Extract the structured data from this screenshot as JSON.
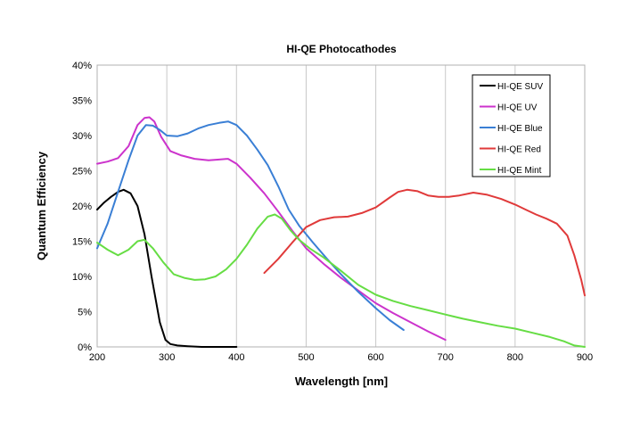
{
  "chart_data": {
    "type": "line",
    "title": "HI-QE Photocathodes",
    "xlabel": "Wavelength [nm]",
    "ylabel": "Quantum Efficiency",
    "xlim": [
      200,
      900
    ],
    "ylim": [
      0,
      0.4
    ],
    "x_ticks": [
      200,
      300,
      400,
      500,
      600,
      700,
      800,
      900
    ],
    "y_ticks": [
      0,
      0.05,
      0.1,
      0.15,
      0.2,
      0.25,
      0.3,
      0.35,
      0.4
    ],
    "x_tick_labels": [
      "200",
      "300",
      "400",
      "500",
      "600",
      "700",
      "800",
      "900"
    ],
    "y_tick_labels": [
      "0%",
      "5%",
      "10%",
      "15%",
      "20%",
      "25%",
      "30%",
      "35%",
      "40%"
    ],
    "grid": "vertical",
    "legend_position": "top-right",
    "series": [
      {
        "name": "HI-QE SUV",
        "color": "#000000",
        "x": [
          200,
          210,
          220,
          230,
          238,
          248,
          258,
          268,
          278,
          290,
          298,
          305,
          315,
          330,
          350,
          370,
          400
        ],
        "y": [
          0.195,
          0.205,
          0.213,
          0.22,
          0.223,
          0.218,
          0.2,
          0.16,
          0.1,
          0.035,
          0.01,
          0.004,
          0.002,
          0.001,
          0.0,
          0.0,
          0.0
        ]
      },
      {
        "name": "HI-QE UV",
        "color": "#cc33cc",
        "x": [
          200,
          215,
          230,
          245,
          258,
          268,
          275,
          282,
          292,
          305,
          320,
          340,
          360,
          375,
          388,
          400,
          420,
          440,
          460,
          480,
          500,
          525,
          550,
          575,
          600,
          625,
          650,
          675,
          700
        ],
        "y": [
          0.26,
          0.263,
          0.268,
          0.285,
          0.315,
          0.325,
          0.326,
          0.32,
          0.298,
          0.278,
          0.272,
          0.267,
          0.265,
          0.266,
          0.267,
          0.26,
          0.24,
          0.218,
          0.192,
          0.165,
          0.14,
          0.118,
          0.098,
          0.08,
          0.062,
          0.048,
          0.035,
          0.022,
          0.01
        ]
      },
      {
        "name": "HI-QE Blue",
        "color": "#3a7fd5",
        "x": [
          200,
          215,
          230,
          245,
          258,
          270,
          280,
          290,
          300,
          315,
          330,
          345,
          360,
          375,
          388,
          400,
          415,
          430,
          445,
          460,
          475,
          490,
          510,
          530,
          550,
          575,
          600,
          620,
          640
        ],
        "y": [
          0.14,
          0.175,
          0.22,
          0.265,
          0.3,
          0.315,
          0.314,
          0.308,
          0.3,
          0.299,
          0.303,
          0.31,
          0.315,
          0.318,
          0.32,
          0.315,
          0.3,
          0.28,
          0.258,
          0.228,
          0.195,
          0.172,
          0.148,
          0.125,
          0.103,
          0.078,
          0.055,
          0.038,
          0.024
        ]
      },
      {
        "name": "HI-QE Red",
        "color": "#e03a3a",
        "x": [
          440,
          460,
          480,
          500,
          520,
          540,
          560,
          580,
          600,
          620,
          632,
          645,
          660,
          675,
          690,
          705,
          720,
          740,
          760,
          780,
          800,
          815,
          830,
          845,
          860,
          875,
          885,
          895,
          900
        ],
        "y": [
          0.105,
          0.125,
          0.148,
          0.17,
          0.18,
          0.184,
          0.185,
          0.19,
          0.198,
          0.212,
          0.22,
          0.223,
          0.221,
          0.215,
          0.213,
          0.213,
          0.215,
          0.219,
          0.216,
          0.21,
          0.202,
          0.195,
          0.188,
          0.182,
          0.175,
          0.158,
          0.13,
          0.095,
          0.073
        ]
      },
      {
        "name": "HI-QE Mint",
        "color": "#66dd44",
        "x": [
          200,
          215,
          230,
          245,
          258,
          268,
          280,
          295,
          310,
          325,
          340,
          355,
          370,
          385,
          400,
          415,
          430,
          445,
          455,
          465,
          478,
          490,
          505,
          525,
          550,
          575,
          600,
          625,
          650,
          675,
          700,
          725,
          750,
          775,
          800,
          825,
          850,
          870,
          885,
          900
        ],
        "y": [
          0.148,
          0.138,
          0.13,
          0.138,
          0.15,
          0.152,
          0.14,
          0.12,
          0.103,
          0.098,
          0.095,
          0.096,
          0.1,
          0.11,
          0.125,
          0.145,
          0.168,
          0.185,
          0.188,
          0.182,
          0.165,
          0.152,
          0.14,
          0.127,
          0.108,
          0.088,
          0.074,
          0.065,
          0.058,
          0.052,
          0.046,
          0.04,
          0.035,
          0.03,
          0.026,
          0.02,
          0.014,
          0.008,
          0.002,
          0.0
        ]
      }
    ]
  }
}
